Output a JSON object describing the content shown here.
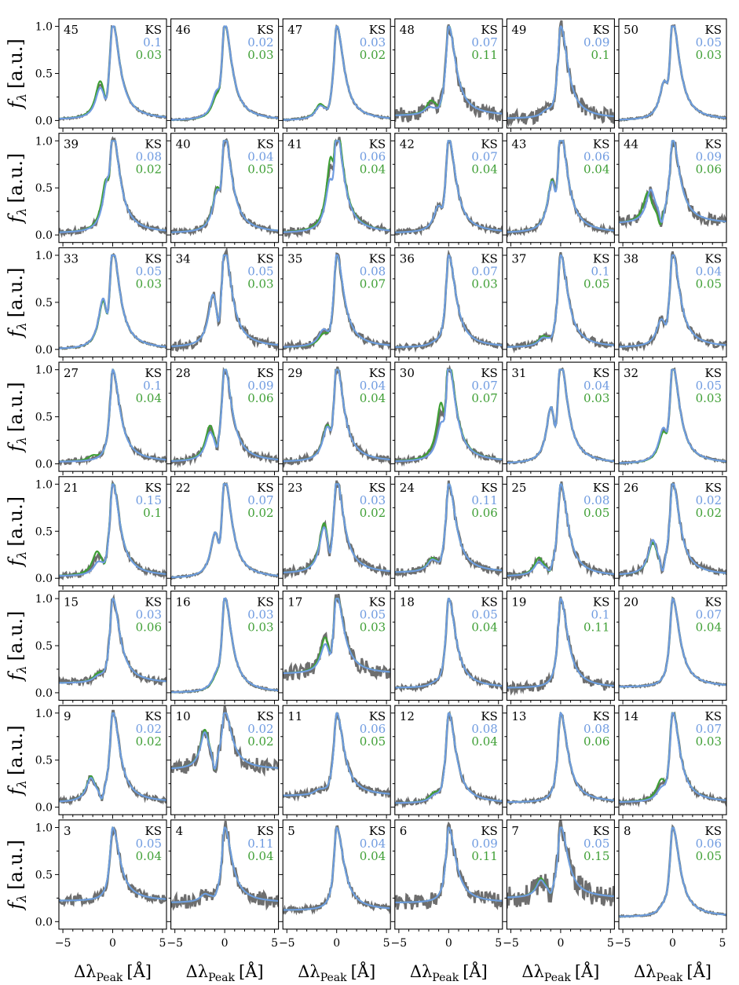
{
  "colors": {
    "observed": "#6e6e6e",
    "model_blue": "#6f9be0",
    "model_green": "#3f9f35",
    "ks_label": "#000000"
  },
  "chart_data": {
    "type": "line",
    "layout": {
      "rows": 8,
      "cols": 6
    },
    "xlim": [
      -5.4,
      5.4
    ],
    "ylim": [
      -0.08,
      1.08
    ],
    "x_ticks": [
      -5,
      0,
      5
    ],
    "x_tick_labels": [
      "−5",
      "0",
      "5"
    ],
    "y_ticks": [
      0.0,
      0.5,
      1.0
    ],
    "y_tick_labels": [
      "0.0",
      "0.5",
      "1.0"
    ],
    "ylabel": "fλ [a.u.]",
    "ylabel_parts": {
      "f": "f",
      "sub": "λ",
      "units": "[a.u.]"
    },
    "xlabel": "ΔλPeak [Å]",
    "xlabel_parts": {
      "delta": "Δλ",
      "sub": "Peak",
      "units": "[Å]"
    },
    "ks_header": "KS",
    "series_legend": [
      "observed spectrum (grey)",
      "model fit (blue)",
      "model fit (green)"
    ],
    "panels": [
      {
        "id": "45",
        "ks_blue": "0.1",
        "ks_green": "0.03",
        "blue_peak_amp": 0.3,
        "blue_peak_pos": -1.3,
        "green_peak_amp": 0.38,
        "green_peak_pos": -1.3,
        "continuum": 0.01,
        "noise": 0.01
      },
      {
        "id": "46",
        "ks_blue": "0.02",
        "ks_green": "0.03",
        "blue_peak_amp": 0.2,
        "blue_peak_pos": -0.9,
        "green_peak_amp": 0.15,
        "green_peak_pos": -0.9,
        "continuum": 0.0,
        "noise": 0.01
      },
      {
        "id": "47",
        "ks_blue": "0.03",
        "ks_green": "0.02",
        "blue_peak_amp": 0.13,
        "blue_peak_pos": -1.7,
        "green_peak_amp": 0.15,
        "green_peak_pos": -1.7,
        "continuum": 0.0,
        "noise": 0.01
      },
      {
        "id": "48",
        "ks_blue": "0.07",
        "ks_green": "0.11",
        "blue_peak_amp": 0.08,
        "blue_peak_pos": -2.0,
        "green_peak_amp": 0.15,
        "green_peak_pos": -1.8,
        "continuum": 0.05,
        "noise": 0.08
      },
      {
        "id": "49",
        "ks_blue": "0.09",
        "ks_green": "0.1",
        "blue_peak_amp": 0.05,
        "blue_peak_pos": -1.5,
        "green_peak_amp": 0.05,
        "green_peak_pos": -1.5,
        "continuum": 0.02,
        "noise": 0.08
      },
      {
        "id": "50",
        "ks_blue": "0.05",
        "ks_green": "0.03",
        "blue_peak_amp": 0.32,
        "blue_peak_pos": -0.9,
        "green_peak_amp": 0.32,
        "green_peak_pos": -0.9,
        "continuum": 0.0,
        "noise": 0.01
      },
      {
        "id": "39",
        "ks_blue": "0.08",
        "ks_green": "0.02",
        "blue_peak_amp": 0.4,
        "blue_peak_pos": -0.6,
        "green_peak_amp": 0.45,
        "green_peak_pos": -0.7,
        "continuum": 0.02,
        "noise": 0.03
      },
      {
        "id": "40",
        "ks_blue": "0.04",
        "ks_green": "0.05",
        "blue_peak_amp": 0.35,
        "blue_peak_pos": -0.8,
        "green_peak_amp": 0.38,
        "green_peak_pos": -0.8,
        "continuum": 0.02,
        "noise": 0.03
      },
      {
        "id": "41",
        "ks_blue": "0.06",
        "ks_green": "0.04",
        "blue_peak_amp": 0.45,
        "blue_peak_pos": -0.7,
        "green_peak_amp": 0.7,
        "green_peak_pos": -0.6,
        "continuum": 0.02,
        "noise": 0.04
      },
      {
        "id": "42",
        "ks_blue": "0.07",
        "ks_green": "0.04",
        "blue_peak_amp": 0.22,
        "blue_peak_pos": -1.1,
        "green_peak_amp": 0.22,
        "green_peak_pos": -1.1,
        "continuum": 0.02,
        "noise": 0.03
      },
      {
        "id": "43",
        "ks_blue": "0.06",
        "ks_green": "0.04",
        "blue_peak_amp": 0.48,
        "blue_peak_pos": -0.9,
        "green_peak_amp": 0.5,
        "green_peak_pos": -0.9,
        "continuum": 0.02,
        "noise": 0.03
      },
      {
        "id": "44",
        "ks_blue": "0.09",
        "ks_green": "0.06",
        "blue_peak_amp": 0.43,
        "blue_peak_pos": -2.2,
        "green_peak_amp": 0.4,
        "green_peak_pos": -2.5,
        "continuum": 0.12,
        "noise": 0.06
      },
      {
        "id": "33",
        "ks_blue": "0.05",
        "ks_green": "0.03",
        "blue_peak_amp": 0.48,
        "blue_peak_pos": -1.0,
        "green_peak_amp": 0.45,
        "green_peak_pos": -1.0,
        "continuum": 0.0,
        "noise": 0.01
      },
      {
        "id": "34",
        "ks_blue": "0.05",
        "ks_green": "0.03",
        "blue_peak_amp": 0.55,
        "blue_peak_pos": -1.2,
        "green_peak_amp": 0.55,
        "green_peak_pos": -1.2,
        "continuum": 0.02,
        "noise": 0.05
      },
      {
        "id": "35",
        "ks_blue": "0.08",
        "ks_green": "0.07",
        "blue_peak_amp": 0.15,
        "blue_peak_pos": -1.4,
        "green_peak_amp": 0.1,
        "green_peak_pos": -1.4,
        "continuum": 0.02,
        "noise": 0.04
      },
      {
        "id": "36",
        "ks_blue": "0.07",
        "ks_green": "0.03",
        "blue_peak_amp": 0.02,
        "blue_peak_pos": -1.5,
        "green_peak_amp": 0.02,
        "green_peak_pos": -1.5,
        "continuum": 0.02,
        "noise": 0.03
      },
      {
        "id": "37",
        "ks_blue": "0.1",
        "ks_green": "0.05",
        "blue_peak_amp": 0.08,
        "blue_peak_pos": -1.8,
        "green_peak_amp": 0.1,
        "green_peak_pos": -1.8,
        "continuum": 0.02,
        "noise": 0.04
      },
      {
        "id": "38",
        "ks_blue": "0.04",
        "ks_green": "0.05",
        "blue_peak_amp": 0.25,
        "blue_peak_pos": -1.2,
        "green_peak_amp": 0.25,
        "green_peak_pos": -1.2,
        "continuum": 0.02,
        "noise": 0.04
      },
      {
        "id": "27",
        "ks_blue": "0.1",
        "ks_green": "0.04",
        "blue_peak_amp": 0.0,
        "blue_peak_pos": -2.0,
        "green_peak_amp": 0.05,
        "green_peak_pos": -2.0,
        "continuum": 0.02,
        "noise": 0.03
      },
      {
        "id": "28",
        "ks_blue": "0.09",
        "ks_green": "0.06",
        "blue_peak_amp": 0.3,
        "blue_peak_pos": -1.5,
        "green_peak_amp": 0.38,
        "green_peak_pos": -1.5,
        "continuum": 0.02,
        "noise": 0.04
      },
      {
        "id": "29",
        "ks_blue": "0.04",
        "ks_green": "0.04",
        "blue_peak_amp": 0.3,
        "blue_peak_pos": -1.0,
        "green_peak_amp": 0.32,
        "green_peak_pos": -1.0,
        "continuum": 0.02,
        "noise": 0.04
      },
      {
        "id": "30",
        "ks_blue": "0.07",
        "ks_green": "0.07",
        "blue_peak_amp": 0.3,
        "blue_peak_pos": -0.8,
        "green_peak_amp": 0.55,
        "green_peak_pos": -0.8,
        "continuum": 0.02,
        "noise": 0.03
      },
      {
        "id": "31",
        "ks_blue": "0.04",
        "ks_green": "0.03",
        "blue_peak_amp": 0.55,
        "blue_peak_pos": -1.0,
        "green_peak_amp": 0.55,
        "green_peak_pos": -1.0,
        "continuum": 0.0,
        "noise": 0.01
      },
      {
        "id": "32",
        "ks_blue": "0.05",
        "ks_green": "0.03",
        "blue_peak_amp": 0.3,
        "blue_peak_pos": -1.0,
        "green_peak_amp": 0.25,
        "green_peak_pos": -1.0,
        "continuum": 0.0,
        "noise": 0.01
      },
      {
        "id": "21",
        "ks_blue": "0.15",
        "ks_green": "0.1",
        "blue_peak_amp": 0.12,
        "blue_peak_pos": -1.5,
        "green_peak_amp": 0.25,
        "green_peak_pos": -1.6,
        "continuum": 0.02,
        "noise": 0.03
      },
      {
        "id": "22",
        "ks_blue": "0.07",
        "ks_green": "0.02",
        "blue_peak_amp": 0.42,
        "blue_peak_pos": -1.0,
        "green_peak_amp": 0.42,
        "green_peak_pos": -1.0,
        "continuum": 0.0,
        "noise": 0.01
      },
      {
        "id": "23",
        "ks_blue": "0.03",
        "ks_green": "0.02",
        "blue_peak_amp": 0.5,
        "blue_peak_pos": -1.3,
        "green_peak_amp": 0.55,
        "green_peak_pos": -1.3,
        "continuum": 0.05,
        "noise": 0.05
      },
      {
        "id": "24",
        "ks_blue": "0.11",
        "ks_green": "0.06",
        "blue_peak_amp": 0.12,
        "blue_peak_pos": -1.7,
        "green_peak_amp": 0.14,
        "green_peak_pos": -1.7,
        "continuum": 0.06,
        "noise": 0.04
      },
      {
        "id": "25",
        "ks_blue": "0.08",
        "ks_green": "0.05",
        "blue_peak_amp": 0.15,
        "blue_peak_pos": -2.2,
        "green_peak_amp": 0.2,
        "green_peak_pos": -2.2,
        "continuum": 0.02,
        "noise": 0.04
      },
      {
        "id": "26",
        "ks_blue": "0.02",
        "ks_green": "0.02",
        "blue_peak_amp": 0.4,
        "blue_peak_pos": -2.0,
        "green_peak_amp": 0.37,
        "green_peak_pos": -2.0,
        "continuum": 0.03,
        "noise": 0.04
      },
      {
        "id": "15",
        "ks_blue": "0.03",
        "ks_green": "0.06",
        "blue_peak_amp": 0.05,
        "blue_peak_pos": -1.5,
        "green_peak_amp": 0.08,
        "green_peak_pos": -1.5,
        "continuum": 0.1,
        "noise": 0.04
      },
      {
        "id": "16",
        "ks_blue": "0.03",
        "ks_green": "0.03",
        "blue_peak_amp": 0.1,
        "blue_peak_pos": -0.9,
        "green_peak_amp": 0.08,
        "green_peak_pos": -0.9,
        "continuum": 0.0,
        "noise": 0.01
      },
      {
        "id": "17",
        "ks_blue": "0.05",
        "ks_green": "0.03",
        "blue_peak_amp": 0.35,
        "blue_peak_pos": -1.2,
        "green_peak_amp": 0.45,
        "green_peak_pos": -1.2,
        "continuum": 0.2,
        "noise": 0.08
      },
      {
        "id": "18",
        "ks_blue": "0.05",
        "ks_green": "0.04",
        "blue_peak_amp": 0.02,
        "blue_peak_pos": -1.5,
        "green_peak_amp": 0.02,
        "green_peak_pos": -1.5,
        "continuum": 0.05,
        "noise": 0.03
      },
      {
        "id": "19",
        "ks_blue": "0.1",
        "ks_green": "0.11",
        "blue_peak_amp": 0.0,
        "blue_peak_pos": -1.5,
        "green_peak_amp": 0.0,
        "green_peak_pos": -1.5,
        "continuum": 0.05,
        "noise": 0.06
      },
      {
        "id": "20",
        "ks_blue": "0.07",
        "ks_green": "0.04",
        "blue_peak_amp": 0.0,
        "blue_peak_pos": -1.5,
        "green_peak_amp": 0.0,
        "green_peak_pos": -1.5,
        "continuum": 0.06,
        "noise": 0.01
      },
      {
        "id": "9",
        "ks_blue": "0.02",
        "ks_green": "0.02",
        "blue_peak_amp": 0.28,
        "blue_peak_pos": -2.2,
        "green_peak_amp": 0.3,
        "green_peak_pos": -2.2,
        "continuum": 0.05,
        "noise": 0.03
      },
      {
        "id": "10",
        "ks_blue": "0.02",
        "ks_green": "0.02",
        "blue_peak_amp": 0.7,
        "blue_peak_pos": -2.0,
        "green_peak_amp": 0.75,
        "green_peak_pos": -2.0,
        "continuum": 0.4,
        "noise": 0.08
      },
      {
        "id": "11",
        "ks_blue": "0.06",
        "ks_green": "0.05",
        "blue_peak_amp": 0.05,
        "blue_peak_pos": -1.8,
        "green_peak_amp": 0.05,
        "green_peak_pos": -1.8,
        "continuum": 0.12,
        "noise": 0.04
      },
      {
        "id": "12",
        "ks_blue": "0.08",
        "ks_green": "0.04",
        "blue_peak_amp": 0.05,
        "blue_peak_pos": -1.5,
        "green_peak_amp": 0.08,
        "green_peak_pos": -1.5,
        "continuum": 0.04,
        "noise": 0.03
      },
      {
        "id": "13",
        "ks_blue": "0.08",
        "ks_green": "0.06",
        "blue_peak_amp": 0.0,
        "blue_peak_pos": -1.5,
        "green_peak_amp": 0.0,
        "green_peak_pos": -1.5,
        "continuum": 0.05,
        "noise": 0.02
      },
      {
        "id": "14",
        "ks_blue": "0.07",
        "ks_green": "0.03",
        "blue_peak_amp": 0.1,
        "blue_peak_pos": -1.2,
        "green_peak_amp": 0.2,
        "green_peak_pos": -1.2,
        "continuum": 0.05,
        "noise": 0.03
      },
      {
        "id": "3",
        "ks_blue": "0.05",
        "ks_green": "0.04",
        "blue_peak_amp": 0.0,
        "blue_peak_pos": -2.0,
        "green_peak_amp": 0.0,
        "green_peak_pos": -2.0,
        "continuum": 0.22,
        "noise": 0.05
      },
      {
        "id": "4",
        "ks_blue": "0.11",
        "ks_green": "0.04",
        "blue_peak_amp": 0.1,
        "blue_peak_pos": -2.0,
        "green_peak_amp": 0.1,
        "green_peak_pos": -2.0,
        "continuum": 0.2,
        "noise": 0.08
      },
      {
        "id": "5",
        "ks_blue": "0.04",
        "ks_green": "0.04",
        "blue_peak_amp": 0.0,
        "blue_peak_pos": -2.0,
        "green_peak_amp": 0.0,
        "green_peak_pos": -2.0,
        "continuum": 0.12,
        "noise": 0.03
      },
      {
        "id": "6",
        "ks_blue": "0.09",
        "ks_green": "0.11",
        "blue_peak_amp": 0.0,
        "blue_peak_pos": -2.0,
        "green_peak_amp": 0.0,
        "green_peak_pos": -2.0,
        "continuum": 0.2,
        "noise": 0.08
      },
      {
        "id": "7",
        "ks_blue": "0.05",
        "ks_green": "0.15",
        "blue_peak_amp": 0.25,
        "blue_peak_pos": -2.0,
        "green_peak_amp": 0.28,
        "green_peak_pos": -2.0,
        "continuum": 0.25,
        "noise": 0.12
      },
      {
        "id": "8",
        "ks_blue": "0.06",
        "ks_green": "0.05",
        "blue_peak_amp": 0.05,
        "blue_peak_pos": -1.0,
        "green_peak_amp": 0.05,
        "green_peak_pos": -1.0,
        "continuum": 0.05,
        "noise": 0.01
      }
    ]
  }
}
